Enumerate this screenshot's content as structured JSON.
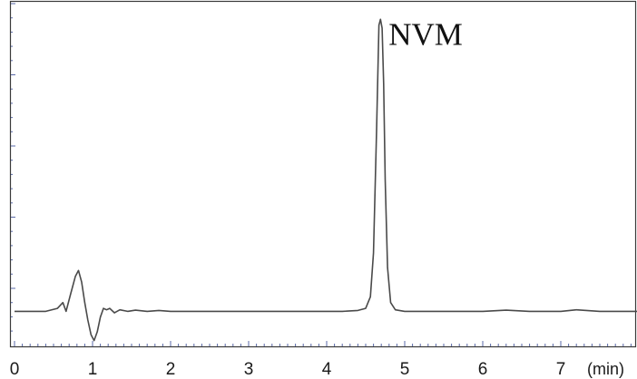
{
  "chart_data": {
    "type": "line",
    "title": "",
    "xlabel": "(min)",
    "ylabel": "",
    "xlim": [
      0,
      8
    ],
    "ylim": [
      -0.12,
      1.06
    ],
    "grid": false,
    "legend": "none",
    "x_ticks": [
      "0",
      "1",
      "2",
      "3",
      "4",
      "5",
      "6",
      "7"
    ],
    "x_tick_values": [
      0,
      1,
      2,
      3,
      4,
      5,
      6,
      7
    ],
    "series": [
      {
        "color": "#4a4a4a",
        "x": [
          0,
          0.4,
          0.55,
          0.62,
          0.66,
          0.72,
          0.78,
          0.82,
          0.86,
          0.9,
          0.94,
          0.98,
          1.02,
          1.06,
          1.1,
          1.14,
          1.18,
          1.22,
          1.28,
          1.35,
          1.45,
          1.55,
          1.7,
          1.85,
          2.0,
          2.2,
          2.6,
          3.0,
          3.6,
          4.2,
          4.4,
          4.5,
          4.56,
          4.6,
          4.64,
          4.67,
          4.69,
          4.71,
          4.73,
          4.75,
          4.78,
          4.82,
          4.88,
          5.0,
          5.4,
          6.0,
          6.3,
          6.6,
          7.0,
          7.2,
          7.5,
          8.0
        ],
        "y": [
          0.0,
          0.0,
          0.01,
          0.03,
          0.0,
          0.06,
          0.12,
          0.14,
          0.1,
          0.03,
          -0.03,
          -0.08,
          -0.1,
          -0.07,
          -0.02,
          0.01,
          0.005,
          0.01,
          -0.005,
          0.005,
          0.0,
          0.004,
          0.0,
          0.003,
          0.0,
          0.0,
          0.0,
          0.0,
          0.0,
          0.0,
          0.003,
          0.01,
          0.05,
          0.2,
          0.62,
          0.98,
          1.0,
          0.97,
          0.78,
          0.45,
          0.15,
          0.03,
          0.005,
          0.0,
          0.0,
          0.0,
          0.004,
          0.0,
          0.0,
          0.005,
          0.0,
          0.0
        ]
      }
    ],
    "annotations": [
      {
        "text": "NVM",
        "x": 4.7,
        "y": 1.0
      }
    ]
  }
}
